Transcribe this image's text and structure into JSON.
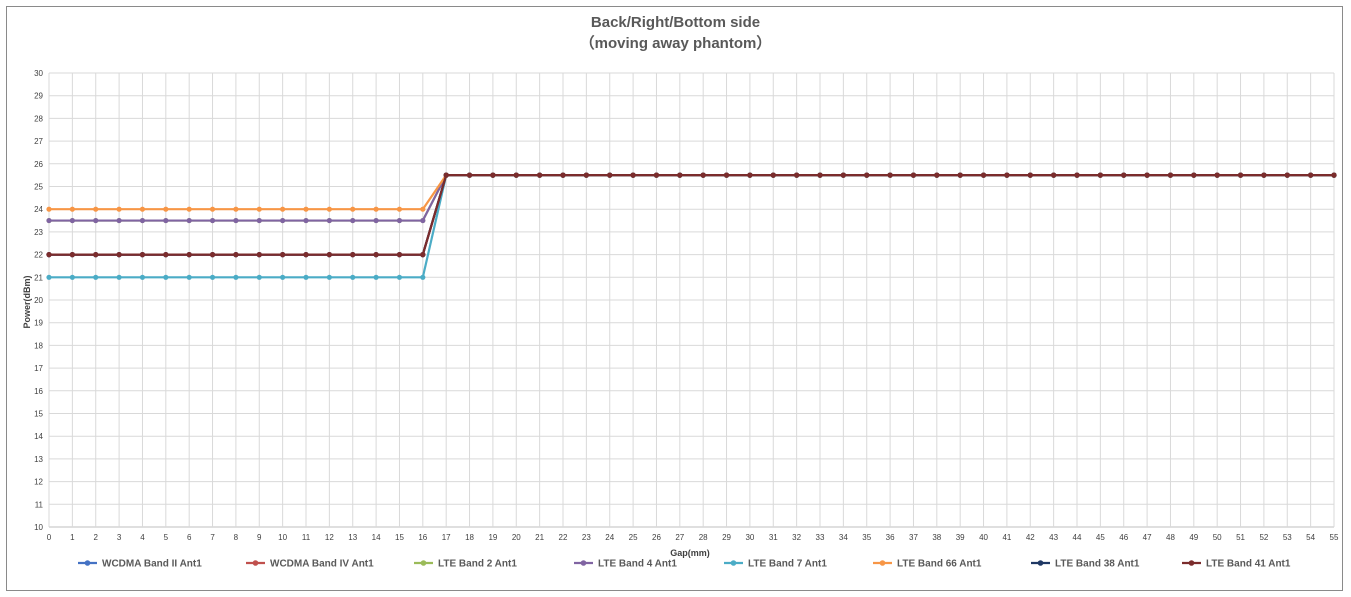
{
  "chart_data": {
    "type": "line",
    "title": "Back/Right/Bottom side",
    "subtitle": "（moving away phantom）",
    "xlabel": "Gap(mm)",
    "ylabel": "Power(dBm)",
    "xlim": [
      0,
      55
    ],
    "ylim": [
      10,
      30
    ],
    "grid": true,
    "legend_position": "bottom",
    "x": [
      0,
      1,
      2,
      3,
      4,
      5,
      6,
      7,
      8,
      9,
      10,
      11,
      12,
      13,
      14,
      15,
      16,
      17,
      18,
      19,
      20,
      21,
      22,
      23,
      24,
      25,
      26,
      27,
      28,
      29,
      30,
      31,
      32,
      33,
      34,
      35,
      36,
      37,
      38,
      39,
      40,
      41,
      42,
      43,
      44,
      45,
      46,
      47,
      48,
      49,
      50,
      51,
      52,
      53,
      54,
      55
    ],
    "series": [
      {
        "name": "WCDMA Band II Ant1",
        "color": "#4472C4",
        "values": [
          22,
          22,
          22,
          22,
          22,
          22,
          22,
          22,
          22,
          22,
          22,
          22,
          22,
          22,
          22,
          22,
          22,
          25.5,
          25.5,
          25.5,
          25.5,
          25.5,
          25.5,
          25.5,
          25.5,
          25.5,
          25.5,
          25.5,
          25.5,
          25.5,
          25.5,
          25.5,
          25.5,
          25.5,
          25.5,
          25.5,
          25.5,
          25.5,
          25.5,
          25.5,
          25.5,
          25.5,
          25.5,
          25.5,
          25.5,
          25.5,
          25.5,
          25.5,
          25.5,
          25.5,
          25.5,
          25.5,
          25.5,
          25.5,
          25.5,
          25.5
        ]
      },
      {
        "name": "WCDMA Band IV Ant1",
        "color": "#C0504D",
        "values": [
          22,
          22,
          22,
          22,
          22,
          22,
          22,
          22,
          22,
          22,
          22,
          22,
          22,
          22,
          22,
          22,
          22,
          25.5,
          25.5,
          25.5,
          25.5,
          25.5,
          25.5,
          25.5,
          25.5,
          25.5,
          25.5,
          25.5,
          25.5,
          25.5,
          25.5,
          25.5,
          25.5,
          25.5,
          25.5,
          25.5,
          25.5,
          25.5,
          25.5,
          25.5,
          25.5,
          25.5,
          25.5,
          25.5,
          25.5,
          25.5,
          25.5,
          25.5,
          25.5,
          25.5,
          25.5,
          25.5,
          25.5,
          25.5,
          25.5,
          25.5
        ]
      },
      {
        "name": "LTE Band 2 Ant1",
        "color": "#9BBB59",
        "values": [
          23.5,
          23.5,
          23.5,
          23.5,
          23.5,
          23.5,
          23.5,
          23.5,
          23.5,
          23.5,
          23.5,
          23.5,
          23.5,
          23.5,
          23.5,
          23.5,
          23.5,
          25.5,
          25.5,
          25.5,
          25.5,
          25.5,
          25.5,
          25.5,
          25.5,
          25.5,
          25.5,
          25.5,
          25.5,
          25.5,
          25.5,
          25.5,
          25.5,
          25.5,
          25.5,
          25.5,
          25.5,
          25.5,
          25.5,
          25.5,
          25.5,
          25.5,
          25.5,
          25.5,
          25.5,
          25.5,
          25.5,
          25.5,
          25.5,
          25.5,
          25.5,
          25.5,
          25.5,
          25.5,
          25.5,
          25.5
        ]
      },
      {
        "name": "LTE Band 4 Ant1",
        "color": "#8064A2",
        "values": [
          23.5,
          23.5,
          23.5,
          23.5,
          23.5,
          23.5,
          23.5,
          23.5,
          23.5,
          23.5,
          23.5,
          23.5,
          23.5,
          23.5,
          23.5,
          23.5,
          23.5,
          25.5,
          25.5,
          25.5,
          25.5,
          25.5,
          25.5,
          25.5,
          25.5,
          25.5,
          25.5,
          25.5,
          25.5,
          25.5,
          25.5,
          25.5,
          25.5,
          25.5,
          25.5,
          25.5,
          25.5,
          25.5,
          25.5,
          25.5,
          25.5,
          25.5,
          25.5,
          25.5,
          25.5,
          25.5,
          25.5,
          25.5,
          25.5,
          25.5,
          25.5,
          25.5,
          25.5,
          25.5,
          25.5,
          25.5
        ]
      },
      {
        "name": "LTE Band 7 Ant1",
        "color": "#4BACC6",
        "values": [
          21,
          21,
          21,
          21,
          21,
          21,
          21,
          21,
          21,
          21,
          21,
          21,
          21,
          21,
          21,
          21,
          21,
          25.5,
          25.5,
          25.5,
          25.5,
          25.5,
          25.5,
          25.5,
          25.5,
          25.5,
          25.5,
          25.5,
          25.5,
          25.5,
          25.5,
          25.5,
          25.5,
          25.5,
          25.5,
          25.5,
          25.5,
          25.5,
          25.5,
          25.5,
          25.5,
          25.5,
          25.5,
          25.5,
          25.5,
          25.5,
          25.5,
          25.5,
          25.5,
          25.5,
          25.5,
          25.5,
          25.5,
          25.5,
          25.5,
          25.5
        ]
      },
      {
        "name": "LTE Band 66 Ant1",
        "color": "#F79646",
        "values": [
          24,
          24,
          24,
          24,
          24,
          24,
          24,
          24,
          24,
          24,
          24,
          24,
          24,
          24,
          24,
          24,
          24,
          25.5,
          25.5,
          25.5,
          25.5,
          25.5,
          25.5,
          25.5,
          25.5,
          25.5,
          25.5,
          25.5,
          25.5,
          25.5,
          25.5,
          25.5,
          25.5,
          25.5,
          25.5,
          25.5,
          25.5,
          25.5,
          25.5,
          25.5,
          25.5,
          25.5,
          25.5,
          25.5,
          25.5,
          25.5,
          25.5,
          25.5,
          25.5,
          25.5,
          25.5,
          25.5,
          25.5,
          25.5,
          25.5,
          25.5
        ]
      },
      {
        "name": "LTE Band 38 Ant1",
        "color": "#1F3864",
        "values": [
          22,
          22,
          22,
          22,
          22,
          22,
          22,
          22,
          22,
          22,
          22,
          22,
          22,
          22,
          22,
          22,
          22,
          25.5,
          25.5,
          25.5,
          25.5,
          25.5,
          25.5,
          25.5,
          25.5,
          25.5,
          25.5,
          25.5,
          25.5,
          25.5,
          25.5,
          25.5,
          25.5,
          25.5,
          25.5,
          25.5,
          25.5,
          25.5,
          25.5,
          25.5,
          25.5,
          25.5,
          25.5,
          25.5,
          25.5,
          25.5,
          25.5,
          25.5,
          25.5,
          25.5,
          25.5,
          25.5,
          25.5,
          25.5,
          25.5,
          25.5
        ]
      },
      {
        "name": "LTE Band 41 Ant1",
        "color": "#7B2C2C",
        "values": [
          22,
          22,
          22,
          22,
          22,
          22,
          22,
          22,
          22,
          22,
          22,
          22,
          22,
          22,
          22,
          22,
          22,
          25.5,
          25.5,
          25.5,
          25.5,
          25.5,
          25.5,
          25.5,
          25.5,
          25.5,
          25.5,
          25.5,
          25.5,
          25.5,
          25.5,
          25.5,
          25.5,
          25.5,
          25.5,
          25.5,
          25.5,
          25.5,
          25.5,
          25.5,
          25.5,
          25.5,
          25.5,
          25.5,
          25.5,
          25.5,
          25.5,
          25.5,
          25.5,
          25.5,
          25.5,
          25.5,
          25.5,
          25.5,
          25.5,
          25.5
        ]
      }
    ]
  }
}
